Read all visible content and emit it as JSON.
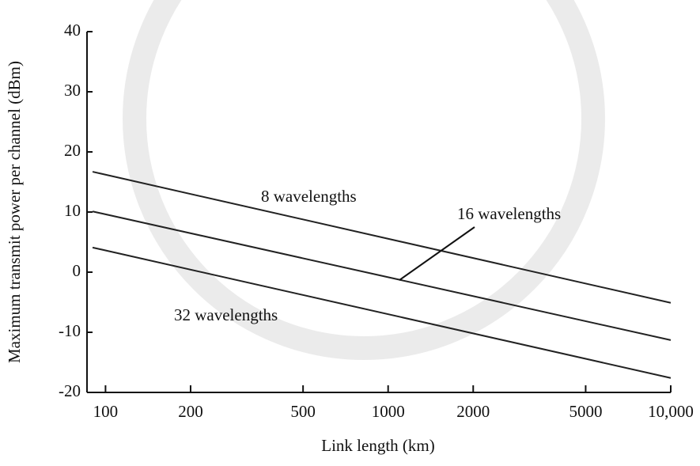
{
  "chart_data": {
    "type": "line",
    "xlabel": "Link length (km)",
    "ylabel": "Maximum transmit power per channel (dBm)",
    "xscale": "log",
    "x": [
      90,
      10000
    ],
    "series": [
      {
        "name": "8 wavelengths",
        "color": "#222222",
        "values": [
          16.7,
          -5.1
        ]
      },
      {
        "name": "16 wavelengths",
        "color": "#222222",
        "values": [
          10.1,
          -11.3
        ]
      },
      {
        "name": "32 wavelengths",
        "color": "#222222",
        "values": [
          4.1,
          -17.6
        ]
      }
    ],
    "xlim": [
      86,
      10000
    ],
    "xticks": [
      100,
      200,
      500,
      1000,
      2000,
      5000,
      {
        "value": 10000,
        "label": "10,000"
      }
    ],
    "ylim": [
      -20,
      40
    ],
    "yticks": [
      -20,
      -10,
      0,
      10,
      20,
      30,
      40
    ]
  }
}
